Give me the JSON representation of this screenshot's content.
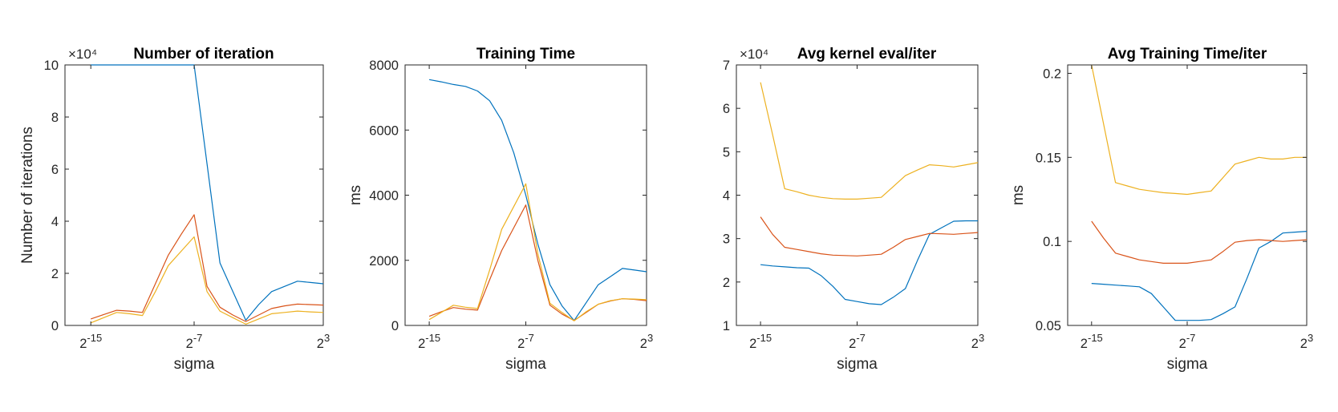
{
  "colors": {
    "series1": "#0072BD",
    "series2": "#D95319",
    "series3": "#EDB120",
    "axes": "#262626"
  },
  "chart_data": [
    {
      "type": "line",
      "title": "Number of iteration",
      "xlabel": "sigma",
      "ylabel": "Number of iterations",
      "exponent_label": "×10⁴",
      "x_scale": "log2",
      "x": [
        -15,
        -14,
        -13,
        -12,
        -11,
        -10,
        -9,
        -8,
        -7,
        -6,
        -5,
        -4,
        -3,
        -2,
        -1,
        0,
        1,
        2,
        3
      ],
      "xlim": [
        -17,
        3
      ],
      "x_ticks": [
        -15,
        -7,
        3
      ],
      "x_tick_labels": [
        "2^-15",
        "2^-7",
        "2^3"
      ],
      "ylim": [
        0,
        10
      ],
      "y_ticks": [
        0,
        2,
        4,
        6,
        8,
        10
      ],
      "y_tick_labels": [
        "0",
        "2",
        "4",
        "6",
        "8",
        "10"
      ],
      "grid": false,
      "series": [
        {
          "color_key": "series1",
          "values": [
            10,
            10,
            10,
            10,
            10,
            10,
            10,
            10,
            10,
            6.2,
            2.4,
            1.3,
            0.2,
            0.8,
            1.3,
            1.5,
            1.7,
            1.65,
            1.6
          ]
        },
        {
          "color_key": "series2",
          "values": [
            0.25,
            0.42,
            0.58,
            0.55,
            0.5,
            1.6,
            2.7,
            3.5,
            4.25,
            1.5,
            0.7,
            0.4,
            0.15,
            0.4,
            0.65,
            0.75,
            0.82,
            0.8,
            0.78
          ]
        },
        {
          "color_key": "series3",
          "values": [
            0.1,
            0.3,
            0.5,
            0.45,
            0.38,
            1.3,
            2.3,
            2.85,
            3.4,
            1.3,
            0.55,
            0.3,
            0.05,
            0.25,
            0.45,
            0.5,
            0.55,
            0.52,
            0.5
          ]
        }
      ]
    },
    {
      "type": "line",
      "title": "Training Time",
      "xlabel": "sigma",
      "ylabel": "ms",
      "exponent_label": "",
      "x_scale": "log2",
      "x": [
        -15,
        -14,
        -13,
        -12,
        -11,
        -10,
        -9,
        -8,
        -7,
        -6,
        -5,
        -4,
        -3,
        -2,
        -1,
        0,
        1,
        2,
        3
      ],
      "xlim": [
        -17,
        3
      ],
      "x_ticks": [
        -15,
        -7,
        3
      ],
      "x_tick_labels": [
        "2^-15",
        "2^-7",
        "2^3"
      ],
      "ylim": [
        0,
        8000
      ],
      "y_ticks": [
        0,
        2000,
        4000,
        6000,
        8000
      ],
      "y_tick_labels": [
        "0",
        "2000",
        "4000",
        "6000",
        "8000"
      ],
      "grid": false,
      "series": [
        {
          "color_key": "series1",
          "values": [
            7550,
            7480,
            7400,
            7340,
            7200,
            6900,
            6300,
            5300,
            4000,
            2500,
            1250,
            600,
            150,
            700,
            1250,
            1500,
            1750,
            1700,
            1650
          ]
        },
        {
          "color_key": "series2",
          "values": [
            280,
            420,
            550,
            500,
            470,
            1400,
            2300,
            3000,
            3700,
            2000,
            620,
            350,
            150,
            400,
            650,
            750,
            820,
            800,
            760
          ]
        },
        {
          "color_key": "series3",
          "values": [
            180,
            400,
            620,
            560,
            520,
            1700,
            2950,
            3650,
            4350,
            2200,
            680,
            400,
            140,
            420,
            650,
            760,
            820,
            810,
            790
          ]
        }
      ]
    },
    {
      "type": "line",
      "title": "Avg kernel eval/iter",
      "xlabel": "sigma",
      "ylabel": "",
      "exponent_label": "×10⁴",
      "x_scale": "log2",
      "x": [
        -15,
        -14,
        -13,
        -12,
        -11,
        -10,
        -9,
        -8,
        -7,
        -6,
        -5,
        -4,
        -3,
        -2,
        -1,
        0,
        1,
        2,
        3
      ],
      "xlim": [
        -17,
        3
      ],
      "x_ticks": [
        -15,
        -7,
        3
      ],
      "x_tick_labels": [
        "2^-15",
        "2^-7",
        "2^3"
      ],
      "ylim": [
        1,
        7
      ],
      "y_ticks": [
        1,
        2,
        3,
        4,
        5,
        6,
        7
      ],
      "y_tick_labels": [
        "1",
        "2",
        "3",
        "4",
        "5",
        "6",
        "7"
      ],
      "grid": false,
      "series": [
        {
          "color_key": "series1",
          "values": [
            2.4,
            2.37,
            2.35,
            2.33,
            2.32,
            2.15,
            1.9,
            1.6,
            1.55,
            1.5,
            1.48,
            1.65,
            1.85,
            2.5,
            3.1,
            3.25,
            3.4,
            3.41,
            3.41
          ]
        },
        {
          "color_key": "series2",
          "values": [
            3.5,
            3.1,
            2.8,
            2.75,
            2.7,
            2.65,
            2.62,
            2.61,
            2.6,
            2.62,
            2.64,
            2.8,
            2.98,
            3.05,
            3.12,
            3.11,
            3.1,
            3.12,
            3.14
          ]
        },
        {
          "color_key": "series3",
          "values": [
            6.6,
            5.4,
            4.15,
            4.08,
            4.0,
            3.95,
            3.92,
            3.91,
            3.91,
            3.93,
            3.95,
            4.2,
            4.45,
            4.58,
            4.7,
            4.68,
            4.65,
            4.7,
            4.75
          ]
        }
      ]
    },
    {
      "type": "line",
      "title": "Avg Training Time/iter",
      "xlabel": "sigma",
      "ylabel": "ms",
      "exponent_label": "",
      "x_scale": "log2",
      "x": [
        -15,
        -14,
        -13,
        -12,
        -11,
        -10,
        -9,
        -8,
        -7,
        -6,
        -5,
        -4,
        -3,
        -2,
        -1,
        0,
        1,
        2,
        3
      ],
      "xlim": [
        -17,
        3
      ],
      "x_ticks": [
        -15,
        -7,
        3
      ],
      "x_tick_labels": [
        "2^-15",
        "2^-7",
        "2^3"
      ],
      "ylim": [
        0.05,
        0.205
      ],
      "y_ticks": [
        0.05,
        0.1,
        0.15,
        0.2
      ],
      "y_tick_labels": [
        "0.05",
        "0.1",
        "0.15",
        "0.2"
      ],
      "grid": false,
      "series": [
        {
          "color_key": "series1",
          "values": [
            0.075,
            0.0745,
            0.074,
            0.0735,
            0.073,
            0.069,
            0.061,
            0.053,
            0.053,
            0.053,
            0.0535,
            0.057,
            0.061,
            0.078,
            0.096,
            0.1,
            0.105,
            0.1055,
            0.106
          ]
        },
        {
          "color_key": "series2",
          "values": [
            0.112,
            0.102,
            0.093,
            0.091,
            0.089,
            0.088,
            0.087,
            0.087,
            0.087,
            0.088,
            0.089,
            0.094,
            0.0995,
            0.1005,
            0.101,
            0.1005,
            0.1,
            0.1005,
            0.101
          ]
        },
        {
          "color_key": "series3",
          "values": [
            0.205,
            0.17,
            0.135,
            0.133,
            0.131,
            0.13,
            0.129,
            0.1285,
            0.128,
            0.129,
            0.13,
            0.138,
            0.146,
            0.148,
            0.15,
            0.149,
            0.149,
            0.15,
            0.15
          ]
        }
      ]
    }
  ]
}
